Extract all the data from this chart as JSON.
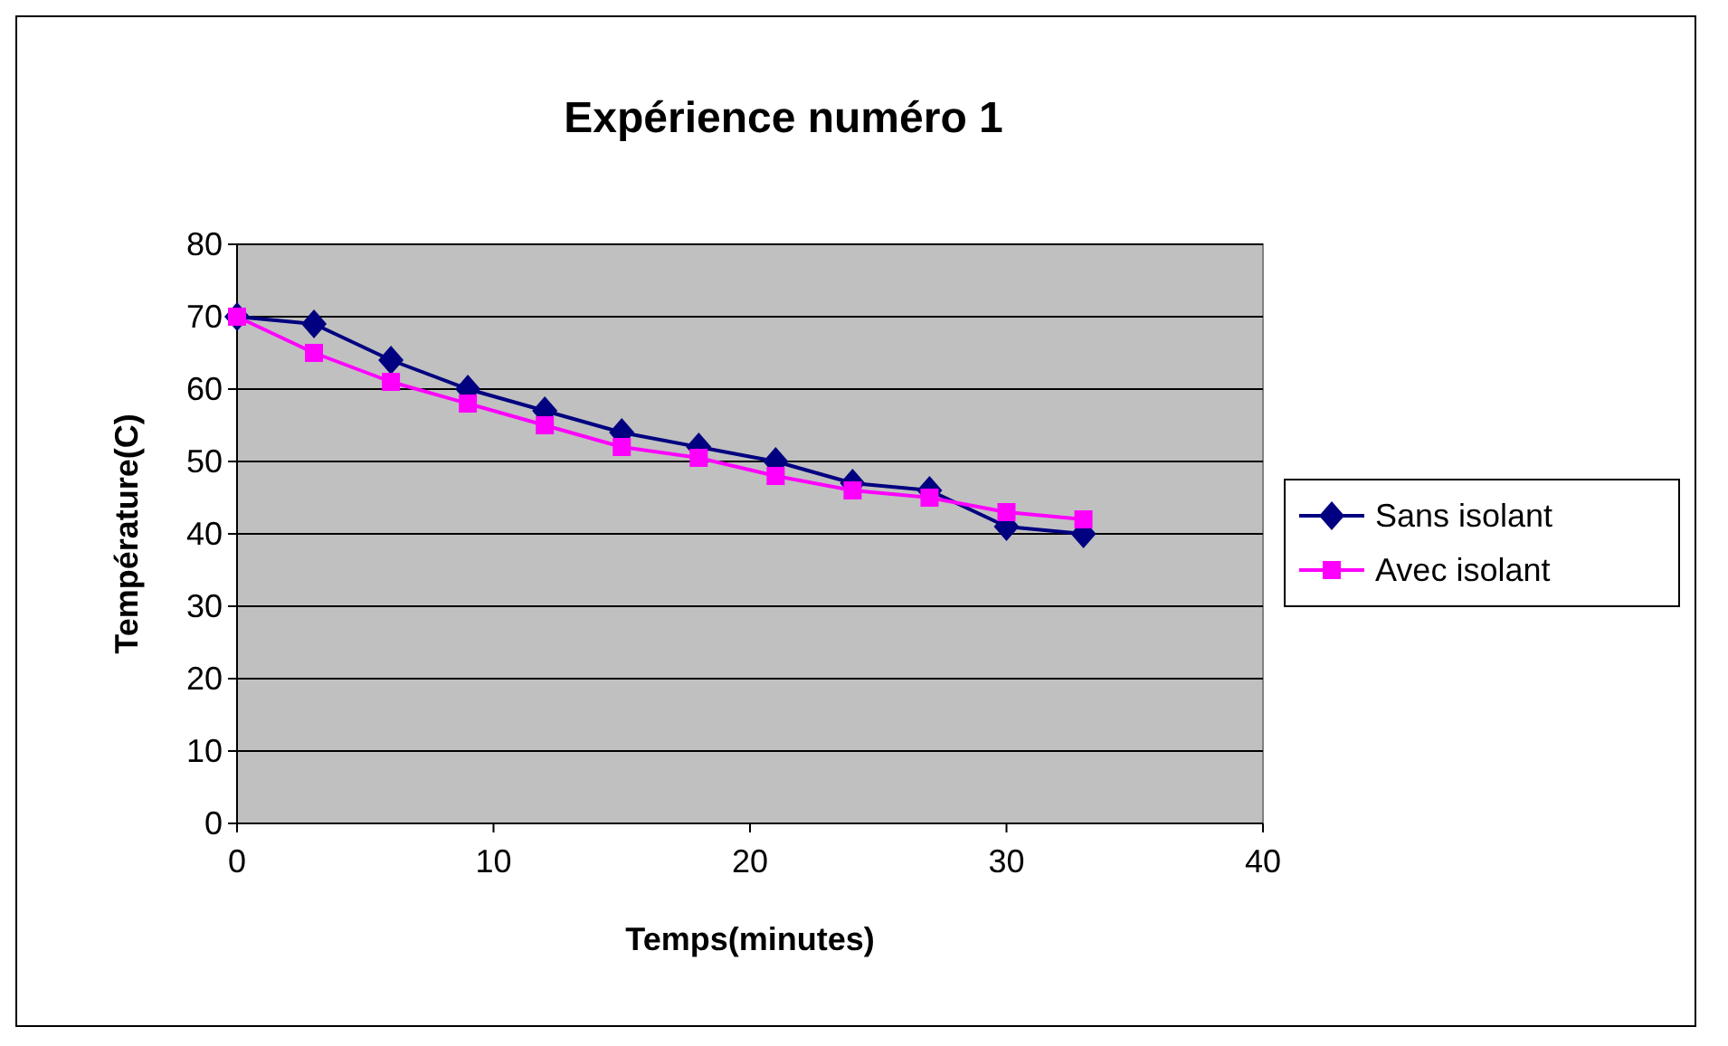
{
  "chart_data": {
    "type": "line",
    "title": "Expérience numéro 1",
    "xlabel": "Temps(minutes)",
    "ylabel": "Température(C)",
    "x": [
      0,
      3,
      6,
      9,
      12,
      15,
      18,
      21,
      24,
      27,
      30,
      33
    ],
    "series": [
      {
        "name": "Sans isolant",
        "color": "#000080",
        "marker": "diamond",
        "values": [
          70,
          69,
          64,
          60,
          57,
          54,
          52,
          50,
          47,
          46,
          41,
          40
        ]
      },
      {
        "name": "Avec isolant",
        "color": "#ff00ff",
        "marker": "square",
        "values": [
          70,
          65,
          61,
          58,
          55,
          52,
          50.5,
          48,
          46,
          45,
          43,
          42
        ]
      }
    ],
    "xlim": [
      0,
      40
    ],
    "xticks": [
      0,
      10,
      20,
      30,
      40
    ],
    "ylim": [
      0,
      80
    ],
    "yticks": [
      0,
      10,
      20,
      30,
      40,
      50,
      60,
      70,
      80
    ],
    "grid": "y",
    "legend": "right"
  }
}
